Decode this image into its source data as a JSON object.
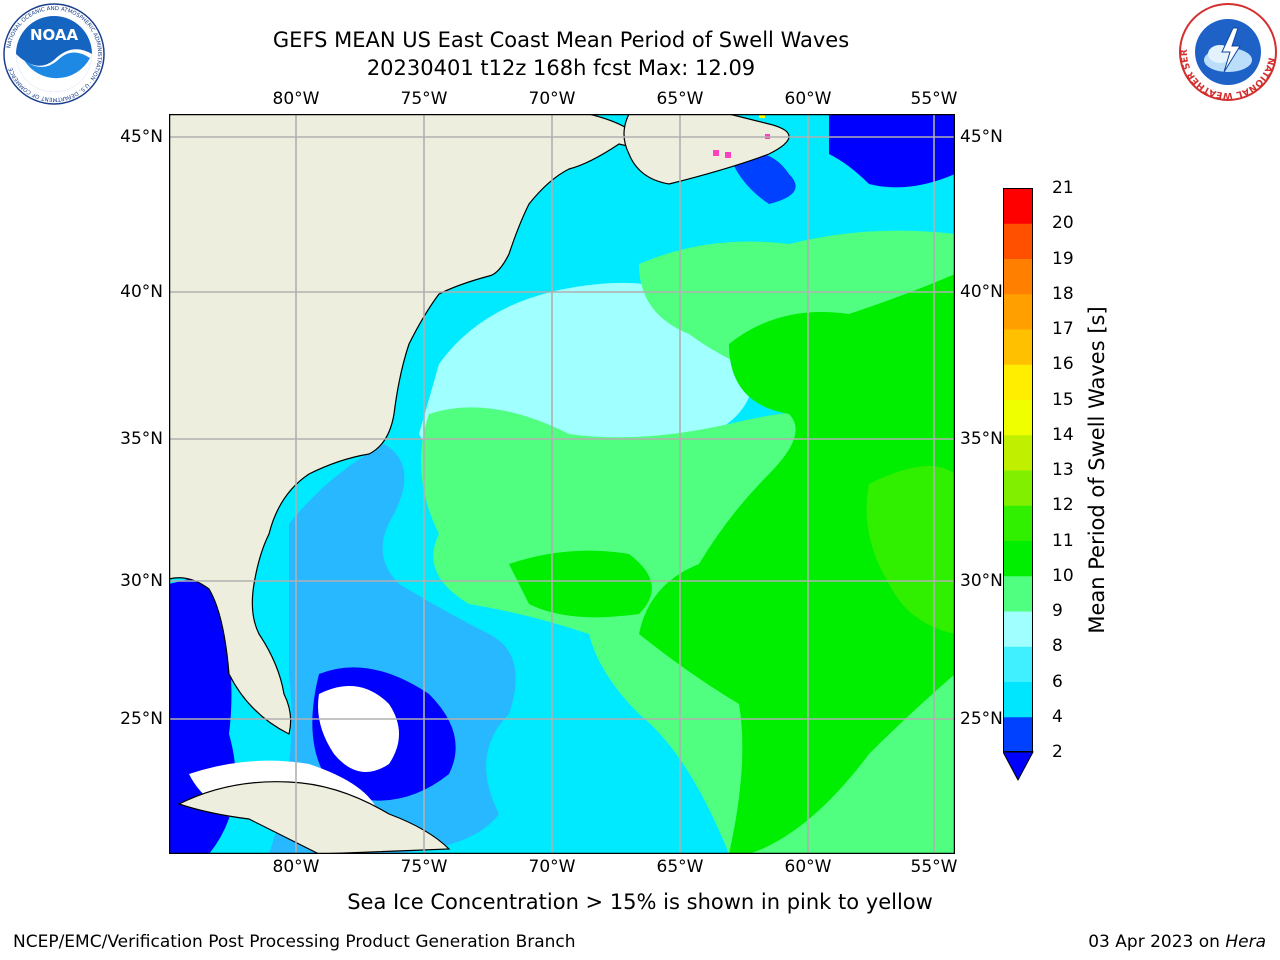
{
  "header": {
    "title_line1": "GEFS MEAN US East Coast Mean Period of Swell Waves",
    "title_line2": "20230401 t12z 168h fcst   Max: 12.09"
  },
  "logos": {
    "noaa_text": "NOAA",
    "noaa_ring_text": "NATIONAL OCEANIC AND ATMOSPHERIC ADMINISTRATION · U.S. DEPARTMENT OF COMMERCE",
    "nws_ring_text": "NATIONAL WEATHER SERVICE"
  },
  "map": {
    "lon_labels": [
      "80°W",
      "75°W",
      "70°W",
      "65°W",
      "60°W",
      "55°W"
    ],
    "lat_labels": [
      "45°N",
      "40°N",
      "35°N",
      "30°N",
      "25°N"
    ],
    "land_color": "#eeeede",
    "gridline_color": "#b0b0b0",
    "missing_color": "#ffffff",
    "sea_ice_colors": [
      "#ff40c0",
      "#ffff00"
    ]
  },
  "colorbar": {
    "label": "Mean Period of Swell Waves [s]",
    "ticks": [
      "2",
      "4",
      "6",
      "8",
      "9",
      "10",
      "11",
      "12",
      "13",
      "14",
      "15",
      "16",
      "17",
      "18",
      "19",
      "20",
      "21"
    ],
    "colors": [
      "#0040ff",
      "#00e6ff",
      "#40f0ff",
      "#a0ffff",
      "#50ff80",
      "#00ee00",
      "#30f000",
      "#80f000",
      "#c0f000",
      "#f0ff00",
      "#ffee00",
      "#ffc000",
      "#ffa000",
      "#ff8000",
      "#ff5000",
      "#ff0000"
    ],
    "under_color": "#0000ff"
  },
  "note": "Sea Ice Concentration > 15% is shown in pink to yellow",
  "footer": {
    "left": "NCEP/EMC/Verification Post Processing Product Generation Branch",
    "right_date": "03 Apr 2023 on",
    "right_host": "Hera"
  }
}
